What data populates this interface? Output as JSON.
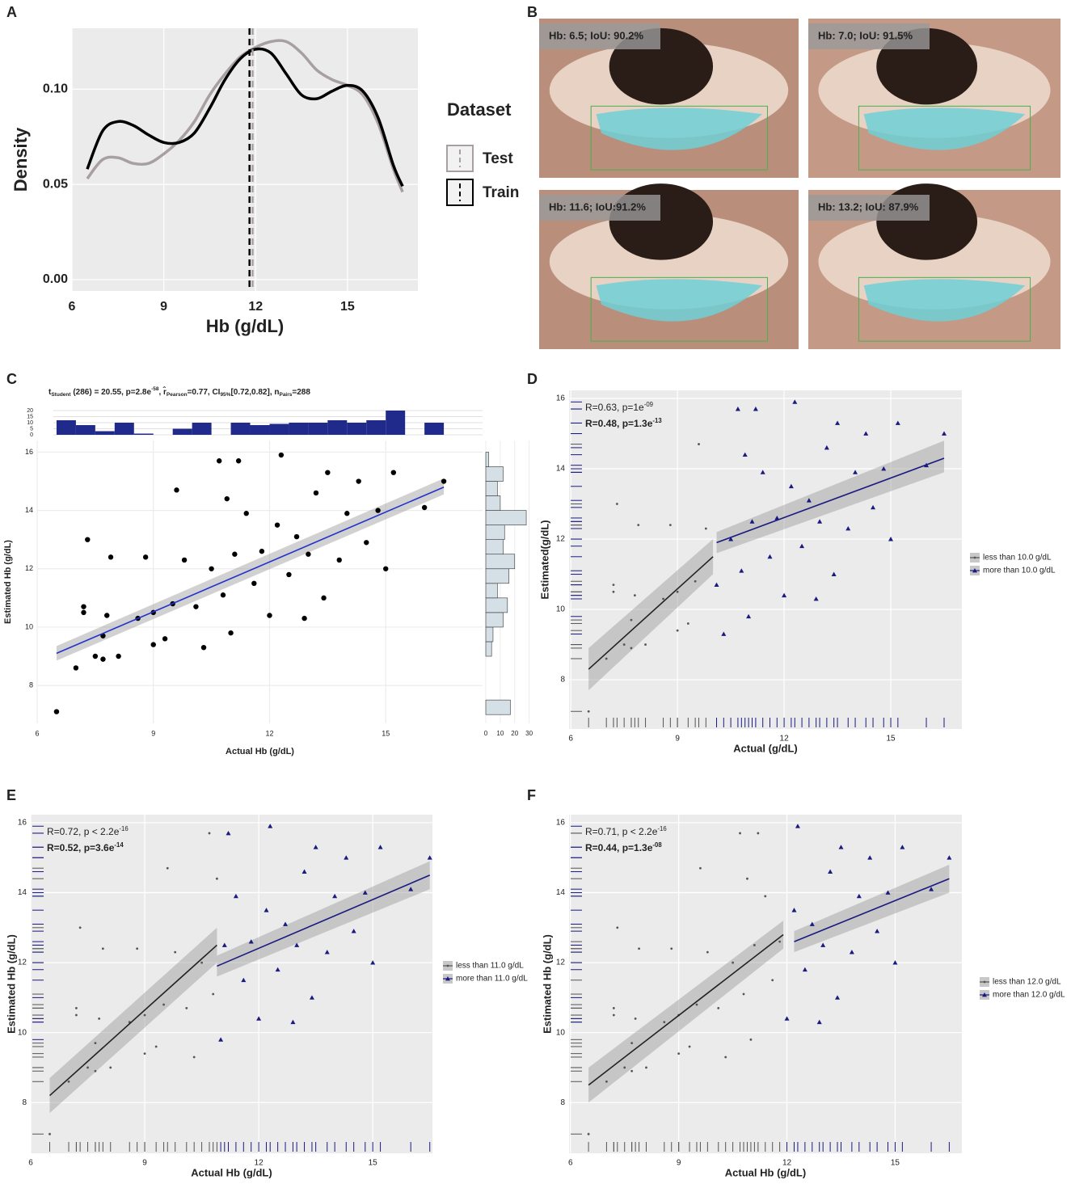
{
  "panel_labels": [
    "A",
    "B",
    "C",
    "D",
    "E",
    "F"
  ],
  "images": [
    {
      "label": "Hb: 6.5; IoU: 90.2%"
    },
    {
      "label": "Hb: 7.0; IoU: 91.5%"
    },
    {
      "label": "Hb: 11.6; IoU:91.2%"
    },
    {
      "label": "Hb: 13.2; IoU: 87.9%"
    }
  ],
  "chart_data": [
    {
      "type": "line",
      "xlabel": "Hb (g/dL)",
      "ylabel": "Density",
      "xlim": [
        6,
        17.3
      ],
      "ylim": [
        -0.006,
        0.132
      ],
      "xticks": [
        6,
        9,
        12,
        15
      ],
      "yticks": [
        {
          "value": 0,
          "label": "0.00"
        },
        {
          "value": 0.05,
          "label": "0.05"
        },
        {
          "value": 0.1,
          "label": "0.10"
        }
      ],
      "grid": true,
      "legend_title": "Dataset",
      "x": [
        6.5,
        7,
        7.5,
        8,
        8.5,
        9,
        9.5,
        10,
        10.5,
        11,
        11.5,
        12,
        12.5,
        13,
        13.5,
        14,
        14.5,
        15,
        15.5,
        16,
        16.5,
        16.8
      ],
      "series": [
        {
          "name": "Test",
          "color": "#a8a0a0",
          "mean": 11.9,
          "values": [
            0.053,
            0.063,
            0.064,
            0.061,
            0.061,
            0.066,
            0.073,
            0.083,
            0.097,
            0.108,
            0.117,
            0.122,
            0.125,
            0.125,
            0.119,
            0.11,
            0.105,
            0.102,
            0.097,
            0.082,
            0.058,
            0.046
          ]
        },
        {
          "name": "Train",
          "color": "#000000",
          "mean": 11.8,
          "values": [
            0.058,
            0.078,
            0.083,
            0.081,
            0.076,
            0.072,
            0.072,
            0.077,
            0.09,
            0.105,
            0.116,
            0.121,
            0.119,
            0.108,
            0.097,
            0.095,
            0.099,
            0.102,
            0.099,
            0.085,
            0.06,
            0.049
          ]
        }
      ]
    },
    {
      "type": "scatter",
      "xlabel": "Actual Hb (g/dL)",
      "ylabel": "Estimated Hb (g/dL)",
      "title_parts": [
        {
          "text": "t"
        },
        {
          "text": "Student",
          "pos": "sub"
        },
        {
          "text": " (286) = 20.55, p=2.8e"
        },
        {
          "text": "-58",
          "pos": "sup"
        },
        {
          "text": ", r̂"
        },
        {
          "text": "Pearson",
          "pos": "sub"
        },
        {
          "text": "=0.77, CI"
        },
        {
          "text": "95%",
          "pos": "sub"
        },
        {
          "text": "[0.72,0.82], n"
        },
        {
          "text": "Pairs",
          "pos": "sub"
        },
        {
          "text": "=288"
        }
      ],
      "xlim": [
        6,
        17.5
      ],
      "ylim": [
        6.7,
        16.4
      ],
      "xticks": [
        6,
        9,
        12,
        15
      ],
      "yticks": [
        8,
        10,
        12,
        14,
        16
      ],
      "background": "#ffffff",
      "grid_color": "#ececec",
      "rug": false,
      "series": [
        {
          "color": "#000000",
          "marker": "circle",
          "x": [
            6.5,
            7.0,
            7.2,
            7.2,
            7.3,
            7.5,
            7.7,
            7.7,
            7.8,
            7.9,
            8.1,
            8.6,
            8.8,
            9.0,
            9.0,
            9.3,
            9.5,
            9.6,
            9.8,
            10.1,
            10.3,
            10.5,
            10.7,
            10.8,
            10.9,
            11.0,
            11.1,
            11.2,
            11.4,
            11.6,
            11.8,
            12.0,
            12.2,
            12.3,
            12.5,
            12.7,
            12.9,
            13.0,
            13.2,
            13.4,
            13.5,
            13.8,
            14.0,
            14.3,
            14.5,
            14.8,
            15.0,
            15.2,
            16.0,
            16.5
          ],
          "y": [
            7.1,
            8.6,
            10.7,
            10.5,
            13.0,
            9.0,
            9.7,
            8.9,
            10.4,
            12.4,
            9.0,
            10.3,
            12.4,
            10.5,
            9.4,
            9.6,
            10.8,
            14.7,
            12.3,
            10.7,
            9.3,
            12.0,
            15.7,
            11.1,
            14.4,
            9.8,
            12.5,
            15.7,
            13.9,
            11.5,
            12.6,
            10.4,
            13.5,
            15.9,
            11.8,
            13.1,
            10.3,
            12.5,
            14.6,
            11.0,
            15.3,
            12.3,
            13.9,
            15.0,
            12.9,
            14.0,
            12.0,
            15.3,
            14.1,
            15.0
          ],
          "fit": {
            "color": "#2233cc",
            "x": [
              6.5,
              16.5
            ],
            "y": [
              9.1,
              14.8
            ],
            "lower": [
              8.85,
              14.55
            ],
            "upper": [
              9.35,
              15.1
            ]
          }
        }
      ],
      "hist_top": {
        "color": "#1f2a8a",
        "ylim": [
          0,
          22
        ],
        "yticks": [
          0,
          5,
          10,
          15,
          20
        ],
        "bins": [
          6.5,
          7,
          7.5,
          8,
          8.5,
          9,
          9.5,
          10,
          10.5,
          11,
          11.5,
          12,
          12.5,
          13,
          13.5,
          14,
          14.5,
          15,
          15.5,
          16,
          16.5
        ],
        "counts": [
          12,
          8,
          3,
          10,
          1,
          0,
          5,
          10,
          0,
          10,
          8,
          9,
          10,
          10,
          12,
          10,
          12,
          20,
          0,
          10
        ]
      },
      "hist_right": {
        "color": "#d5e0e6",
        "xlim": [
          0,
          33
        ],
        "xticks": [
          0,
          10,
          20,
          30
        ],
        "bins": [
          7,
          7.5,
          8,
          8.5,
          9,
          9.5,
          10,
          10.5,
          11,
          11.5,
          12,
          12.5,
          13,
          13.5,
          14,
          14.5,
          15,
          15.5,
          16
        ],
        "counts": [
          17,
          0,
          0,
          0,
          4,
          5,
          12,
          15,
          8,
          16,
          20,
          12,
          13,
          28,
          10,
          8,
          12,
          2
        ]
      }
    },
    {
      "type": "scatter",
      "xlabel": "Actual (g/dL)",
      "ylabel": "Estimated(g/dL)",
      "xlim": [
        5.95,
        17.0
      ],
      "ylim": [
        6.6,
        16.23
      ],
      "xticks": [
        6,
        9,
        12,
        15
      ],
      "yticks": [
        8,
        10,
        12,
        14,
        16
      ],
      "background": "#ebebeb",
      "grid_color": "#ffffff",
      "rug": true,
      "legend": "right",
      "annotations": [
        {
          "color": "#555555",
          "parts": [
            {
              "text": "R=0.63, p=1e"
            },
            {
              "text": "-09",
              "pos": "sup"
            }
          ]
        },
        {
          "color": "#1a1a80",
          "bold": true,
          "parts": [
            {
              "text": "R=0.48, p=1.3e"
            },
            {
              "text": "-13",
              "pos": "sup"
            }
          ]
        }
      ],
      "series": [
        {
          "name": "less than 10.0 g/dL",
          "color": "#555555",
          "marker": "dot",
          "x": [
            6.5,
            7.0,
            7.2,
            7.2,
            7.3,
            7.5,
            7.7,
            7.7,
            7.8,
            7.9,
            8.1,
            8.6,
            8.8,
            9.0,
            9.0,
            9.3,
            9.5,
            9.6,
            9.8
          ],
          "y": [
            7.1,
            8.6,
            10.7,
            10.5,
            13.0,
            9.0,
            9.7,
            8.9,
            10.4,
            12.4,
            9.0,
            10.3,
            12.4,
            10.5,
            9.4,
            9.6,
            10.8,
            14.7,
            12.3
          ],
          "fit": {
            "color": "#222222",
            "x": [
              6.5,
              10.0
            ],
            "y": [
              8.3,
              11.5
            ],
            "lower": [
              7.7,
              11.0
            ],
            "upper": [
              8.9,
              12.0
            ]
          }
        },
        {
          "name": "more than 10.0 g/dL",
          "color": "#1a1a80",
          "marker": "triangle",
          "x": [
            10.1,
            10.3,
            10.5,
            10.7,
            10.8,
            10.9,
            11.0,
            11.1,
            11.2,
            11.4,
            11.6,
            11.8,
            12.0,
            12.2,
            12.3,
            12.5,
            12.7,
            12.9,
            13.0,
            13.2,
            13.4,
            13.5,
            13.8,
            14.0,
            14.3,
            14.5,
            14.8,
            15.0,
            15.2,
            16.0,
            16.5
          ],
          "y": [
            10.7,
            9.3,
            12.0,
            15.7,
            11.1,
            14.4,
            9.8,
            12.5,
            15.7,
            13.9,
            11.5,
            12.6,
            10.4,
            13.5,
            15.9,
            11.8,
            13.1,
            10.3,
            12.5,
            14.6,
            11.0,
            15.3,
            12.3,
            13.9,
            15.0,
            12.9,
            14.0,
            12.0,
            15.3,
            14.1,
            15.0
          ],
          "fit": {
            "color": "#1a1a80",
            "x": [
              10.1,
              16.5
            ],
            "y": [
              11.9,
              14.3
            ],
            "lower": [
              11.6,
              13.9
            ],
            "upper": [
              12.2,
              14.8
            ]
          }
        }
      ]
    },
    {
      "type": "scatter",
      "xlabel": "Actual Hb (g/dL)",
      "ylabel": "Estimated Hb (g/dL)",
      "xlim": [
        6,
        16.57
      ],
      "ylim": [
        6.55,
        16.23
      ],
      "xticks": [
        6,
        9,
        12,
        15
      ],
      "yticks": [
        8,
        10,
        12,
        14,
        16
      ],
      "background": "#ebebeb",
      "grid_color": "#ffffff",
      "rug": true,
      "legend": "right",
      "annotations": [
        {
          "color": "#555555",
          "parts": [
            {
              "text": "R=0.72, p < 2.2e"
            },
            {
              "text": "-16",
              "pos": "sup"
            }
          ]
        },
        {
          "color": "#1a1a80",
          "bold": true,
          "parts": [
            {
              "text": "R=0.52, p=3.6e"
            },
            {
              "text": "-14",
              "pos": "sup"
            }
          ]
        }
      ],
      "series": [
        {
          "name": "less than 11.0 g/dL",
          "color": "#555555",
          "marker": "dot",
          "x": [
            6.5,
            7.0,
            7.2,
            7.2,
            7.3,
            7.5,
            7.7,
            7.7,
            7.8,
            7.9,
            8.1,
            8.6,
            8.8,
            9.0,
            9.0,
            9.3,
            9.5,
            9.6,
            9.8,
            10.1,
            10.3,
            10.5,
            10.7,
            10.8,
            10.9
          ],
          "y": [
            7.1,
            8.6,
            10.7,
            10.5,
            13.0,
            9.0,
            9.7,
            8.9,
            10.4,
            12.4,
            9.0,
            10.3,
            12.4,
            10.5,
            9.4,
            9.6,
            10.8,
            14.7,
            12.3,
            10.7,
            9.3,
            12.0,
            15.7,
            11.1,
            14.4
          ],
          "fit": {
            "color": "#222222",
            "x": [
              6.5,
              10.9
            ],
            "y": [
              8.2,
              12.5
            ],
            "lower": [
              7.7,
              12.0
            ],
            "upper": [
              8.7,
              13.0
            ]
          }
        },
        {
          "name": "more than 11.0 g/dL",
          "color": "#1a1a80",
          "marker": "triangle",
          "x": [
            11.0,
            11.1,
            11.2,
            11.4,
            11.6,
            11.8,
            12.0,
            12.2,
            12.3,
            12.5,
            12.7,
            12.9,
            13.0,
            13.2,
            13.4,
            13.5,
            13.8,
            14.0,
            14.3,
            14.5,
            14.8,
            15.0,
            15.2,
            16.0,
            16.5
          ],
          "y": [
            9.8,
            12.5,
            15.7,
            13.9,
            11.5,
            12.6,
            10.4,
            13.5,
            15.9,
            11.8,
            13.1,
            10.3,
            12.5,
            14.6,
            11.0,
            15.3,
            12.3,
            13.9,
            15.0,
            12.9,
            14.0,
            12.0,
            15.3,
            14.1,
            15.0
          ],
          "fit": {
            "color": "#1a1a80",
            "x": [
              10.9,
              16.5
            ],
            "y": [
              11.9,
              14.5
            ],
            "lower": [
              11.6,
              14.1
            ],
            "upper": [
              12.2,
              14.9
            ]
          }
        }
      ]
    },
    {
      "type": "scatter",
      "xlabel": "Actual Hb (g/dL)",
      "ylabel": "Estimated Hb (g/dL)",
      "xlim": [
        5.96,
        16.85
      ],
      "ylim": [
        6.55,
        16.23
      ],
      "xticks": [
        6,
        9,
        12,
        15
      ],
      "yticks": [
        8,
        10,
        12,
        14,
        16
      ],
      "background": "#ebebeb",
      "grid_color": "#ffffff",
      "rug": true,
      "legend": "right",
      "annotations": [
        {
          "color": "#555555",
          "parts": [
            {
              "text": "R=0.71, p < 2.2e"
            },
            {
              "text": "-16",
              "pos": "sup"
            }
          ]
        },
        {
          "color": "#1a1a80",
          "bold": true,
          "parts": [
            {
              "text": "R=0.44, p=1.3e"
            },
            {
              "text": "-08",
              "pos": "sup"
            }
          ]
        }
      ],
      "series": [
        {
          "name": "less than 12.0 g/dL",
          "color": "#555555",
          "marker": "dot",
          "x": [
            6.5,
            7.0,
            7.2,
            7.2,
            7.3,
            7.5,
            7.7,
            7.7,
            7.8,
            7.9,
            8.1,
            8.6,
            8.8,
            9.0,
            9.0,
            9.3,
            9.5,
            9.6,
            9.8,
            10.1,
            10.3,
            10.5,
            10.7,
            10.8,
            10.9,
            11.0,
            11.1,
            11.2,
            11.4,
            11.6,
            11.8
          ],
          "y": [
            7.1,
            8.6,
            10.7,
            10.5,
            13.0,
            9.0,
            9.7,
            8.9,
            10.4,
            12.4,
            9.0,
            10.3,
            12.4,
            10.5,
            9.4,
            9.6,
            10.8,
            14.7,
            12.3,
            10.7,
            9.3,
            12.0,
            15.7,
            11.1,
            14.4,
            9.8,
            12.5,
            15.7,
            13.9,
            11.5,
            12.6
          ],
          "fit": {
            "color": "#222222",
            "x": [
              6.5,
              11.9
            ],
            "y": [
              8.5,
              12.8
            ],
            "lower": [
              8.0,
              12.4
            ],
            "upper": [
              9.0,
              13.2
            ]
          }
        },
        {
          "name": "more than 12.0 g/dL",
          "color": "#1a1a80",
          "marker": "triangle",
          "x": [
            12.0,
            12.2,
            12.3,
            12.5,
            12.7,
            12.9,
            13.0,
            13.2,
            13.4,
            13.5,
            13.8,
            14.0,
            14.3,
            14.5,
            14.8,
            15.0,
            15.2,
            16.0,
            16.5
          ],
          "y": [
            10.4,
            13.5,
            15.9,
            11.8,
            13.1,
            10.3,
            12.5,
            14.6,
            11.0,
            15.3,
            12.3,
            13.9,
            15.0,
            12.9,
            14.0,
            12.0,
            15.3,
            14.1,
            15.0
          ],
          "fit": {
            "color": "#1a1a80",
            "x": [
              12.2,
              16.5
            ],
            "y": [
              12.6,
              14.4
            ],
            "lower": [
              12.3,
              14.0
            ],
            "upper": [
              12.9,
              14.8
            ]
          }
        }
      ]
    }
  ]
}
